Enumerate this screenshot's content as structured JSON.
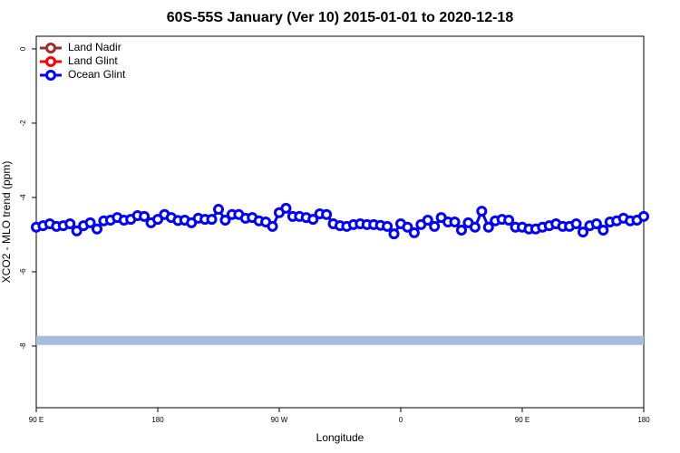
{
  "chart_data": {
    "type": "line",
    "title": "60S-55S January (Ver 10)   2015-01-01 to 2020-12-18",
    "x_label": "Longitude",
    "y_label": "XCO2 - MLO trend (ppm)",
    "xlim": [
      90,
      540
    ],
    "xticks": [
      {
        "value": 90,
        "label": "90 E"
      },
      {
        "value": 180,
        "label": "180"
      },
      {
        "value": 270,
        "label": "90 W"
      },
      {
        "value": 360,
        "label": "0"
      },
      {
        "value": 450,
        "label": "90 E"
      },
      {
        "value": 540,
        "label": "180"
      }
    ],
    "ylim": [
      -9.66,
      0.34
    ],
    "yticks": [
      0,
      -2,
      -4,
      -6,
      -8
    ],
    "legend_position": "top-left",
    "reference_band": {
      "value": -7.85,
      "color": "#a6bddb"
    },
    "series": [
      {
        "name": "Land Nadir",
        "color": "#a52a2a",
        "x": [],
        "values": []
      },
      {
        "name": "Land Glint",
        "color": "#ff0000",
        "x": [],
        "values": []
      },
      {
        "name": "Ocean Glint",
        "color": "#0000ff",
        "x": [
          90,
          95,
          100,
          105,
          110,
          115,
          120,
          125,
          130,
          135,
          140,
          145,
          150,
          155,
          160,
          165,
          170,
          175,
          180,
          185,
          190,
          195,
          200,
          205,
          210,
          215,
          220,
          225,
          230,
          235,
          240,
          245,
          250,
          255,
          260,
          265,
          270,
          275,
          280,
          285,
          290,
          295,
          300,
          305,
          310,
          315,
          320,
          325,
          330,
          335,
          340,
          345,
          350,
          355,
          360,
          365,
          370,
          375,
          380,
          385,
          390,
          395,
          400,
          405,
          410,
          415,
          420,
          425,
          430,
          435,
          440,
          445,
          450,
          455,
          460,
          465,
          470,
          475,
          480,
          485,
          490,
          495,
          500,
          505,
          510,
          515,
          520,
          525,
          530,
          535,
          540
        ],
        "values": [
          -4.8,
          -4.76,
          -4.71,
          -4.78,
          -4.76,
          -4.71,
          -4.9,
          -4.76,
          -4.68,
          -4.85,
          -4.63,
          -4.61,
          -4.54,
          -4.61,
          -4.59,
          -4.49,
          -4.51,
          -4.68,
          -4.59,
          -4.46,
          -4.54,
          -4.62,
          -4.61,
          -4.68,
          -4.56,
          -4.59,
          -4.59,
          -4.32,
          -4.61,
          -4.46,
          -4.46,
          -4.56,
          -4.54,
          -4.63,
          -4.66,
          -4.78,
          -4.41,
          -4.29,
          -4.51,
          -4.51,
          -4.54,
          -4.59,
          -4.44,
          -4.46,
          -4.71,
          -4.76,
          -4.78,
          -4.73,
          -4.71,
          -4.73,
          -4.73,
          -4.75,
          -4.78,
          -4.98,
          -4.71,
          -4.8,
          -4.95,
          -4.73,
          -4.61,
          -4.78,
          -4.54,
          -4.66,
          -4.66,
          -4.88,
          -4.68,
          -4.8,
          -4.37,
          -4.8,
          -4.63,
          -4.59,
          -4.61,
          -4.8,
          -4.8,
          -4.85,
          -4.85,
          -4.8,
          -4.76,
          -4.71,
          -4.78,
          -4.78,
          -4.71,
          -4.93,
          -4.76,
          -4.71,
          -4.88,
          -4.66,
          -4.63,
          -4.56,
          -4.63,
          -4.61,
          -4.51
        ]
      }
    ]
  }
}
